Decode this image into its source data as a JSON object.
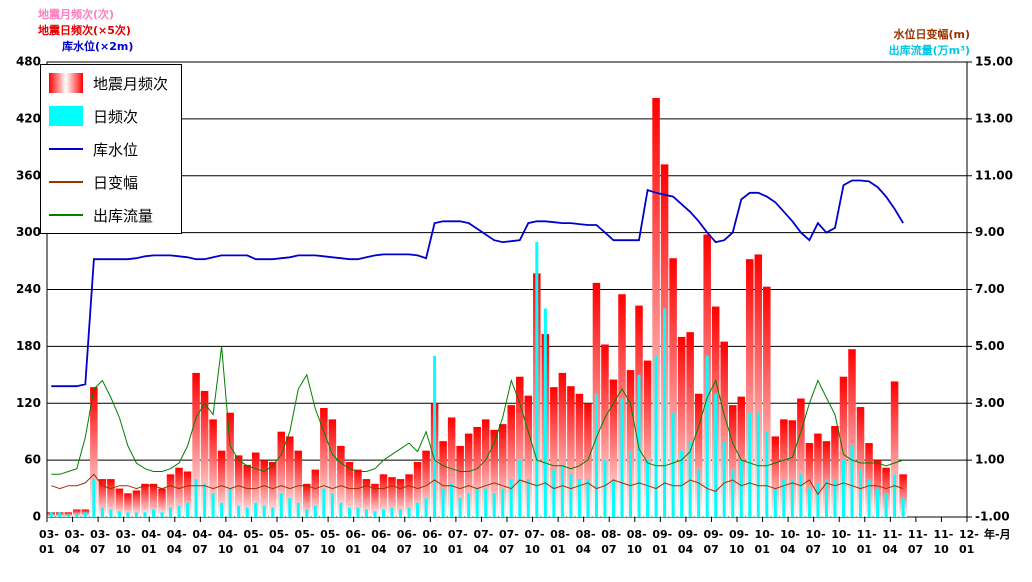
{
  "chart_data": {
    "type": "combo",
    "ylabels": [
      {
        "text": "地震月频次(次)",
        "color": "#ff80c0"
      },
      {
        "text": "地震日频次(×5次)",
        "color": "#e00000"
      },
      {
        "text": "库水位(×2m)",
        "color": "#0000cc"
      }
    ],
    "y2labels": [
      {
        "text": "水位日变幅(m)",
        "color": "#993300"
      },
      {
        "text": "出库流量(万m³)",
        "color": "#00c8e8"
      }
    ],
    "xlabel": "年-月",
    "ylim": [
      0,
      480
    ],
    "yticks": [
      0,
      60,
      120,
      180,
      240,
      300,
      360,
      420,
      480
    ],
    "y2lim": [
      -1,
      15
    ],
    "y2ticks": [
      {
        "value": -1,
        "label": "-1.00"
      },
      {
        "value": 1,
        "label": "1.00"
      },
      {
        "value": 3,
        "label": "3.00"
      },
      {
        "value": 5,
        "label": "5.00"
      },
      {
        "value": 7,
        "label": "7.00"
      },
      {
        "value": 9,
        "label": "9.00"
      },
      {
        "value": 11,
        "label": "11.00"
      },
      {
        "value": 13,
        "label": "13.00"
      },
      {
        "value": 15,
        "label": "15.00"
      }
    ],
    "xticks": [
      "03-01",
      "03-04",
      "03-07",
      "03-10",
      "04-01",
      "04-04",
      "04-07",
      "04-10",
      "05-01",
      "05-04",
      "05-07",
      "05-10",
      "06-01",
      "06-04",
      "06-07",
      "06-10",
      "07-01",
      "07-04",
      "07-07",
      "07-10",
      "08-01",
      "08-04",
      "08-07",
      "08-10",
      "09-01",
      "09-04",
      "09-07",
      "09-10",
      "10-01",
      "10-04",
      "10-07",
      "10-10",
      "11-01",
      "11-04",
      "11-07",
      "11-10",
      "12-01"
    ],
    "grid": true,
    "legend": "upper left",
    "x": [
      "03-01",
      "03-02",
      "03-03",
      "03-04",
      "03-05",
      "03-06",
      "03-07",
      "03-08",
      "03-09",
      "03-10",
      "03-11",
      "03-12",
      "04-01",
      "04-02",
      "04-03",
      "04-04",
      "04-05",
      "04-06",
      "04-07",
      "04-08",
      "04-09",
      "04-10",
      "04-11",
      "04-12",
      "05-01",
      "05-02",
      "05-03",
      "05-04",
      "05-05",
      "05-06",
      "05-07",
      "05-08",
      "05-09",
      "05-10",
      "05-11",
      "05-12",
      "06-01",
      "06-02",
      "06-03",
      "06-04",
      "06-05",
      "06-06",
      "06-07",
      "06-08",
      "06-09",
      "06-10",
      "06-11",
      "06-12",
      "07-01",
      "07-02",
      "07-03",
      "07-04",
      "07-05",
      "07-06",
      "07-07",
      "07-08",
      "07-09",
      "07-10",
      "07-11",
      "07-12",
      "08-01",
      "08-02",
      "08-03",
      "08-04",
      "08-05",
      "08-06",
      "08-07",
      "08-08",
      "08-09",
      "08-10",
      "08-11",
      "08-12",
      "09-01",
      "09-02",
      "09-03",
      "09-04",
      "09-05",
      "09-06",
      "09-07",
      "09-08",
      "09-09",
      "09-10",
      "09-11",
      "09-12",
      "10-01",
      "10-02",
      "10-03",
      "10-04",
      "10-05",
      "10-06",
      "10-07",
      "10-08",
      "10-09",
      "10-10",
      "10-11",
      "10-12",
      "11-01",
      "11-02",
      "11-03",
      "11-04",
      "11-05"
    ],
    "series": [
      {
        "name": "地震月频次",
        "type": "bar",
        "color": "#ff0000",
        "values": [
          5,
          5,
          5,
          8,
          8,
          137,
          40,
          40,
          30,
          25,
          28,
          35,
          35,
          30,
          45,
          52,
          48,
          152,
          133,
          103,
          70,
          110,
          65,
          55,
          68,
          60,
          58,
          90,
          85,
          70,
          35,
          50,
          115,
          103,
          75,
          58,
          50,
          40,
          35,
          45,
          42,
          40,
          45,
          58,
          70,
          120,
          80,
          105,
          75,
          88,
          95,
          103,
          92,
          98,
          118,
          148,
          128,
          257,
          193,
          137,
          152,
          138,
          130,
          120,
          247,
          182,
          145,
          235,
          155,
          223,
          165,
          442,
          372,
          273,
          190,
          195,
          130,
          298,
          222,
          185,
          118,
          127,
          272,
          277,
          243,
          85,
          103,
          102,
          125,
          78,
          88,
          80,
          96,
          148,
          177,
          116,
          78,
          60,
          52,
          143,
          45
        ]
      },
      {
        "name": "日频次",
        "type": "bar",
        "color": "#00ffff",
        "values": [
          5,
          5,
          3,
          3,
          5,
          40,
          10,
          8,
          6,
          5,
          5,
          5,
          8,
          5,
          10,
          12,
          15,
          40,
          35,
          25,
          15,
          30,
          12,
          10,
          15,
          12,
          10,
          25,
          20,
          15,
          8,
          12,
          30,
          25,
          15,
          10,
          10,
          8,
          6,
          8,
          10,
          8,
          10,
          15,
          20,
          170,
          30,
          35,
          20,
          25,
          30,
          30,
          25,
          30,
          40,
          60,
          40,
          290,
          220,
          50,
          55,
          45,
          40,
          40,
          130,
          60,
          40,
          125,
          70,
          150,
          60,
          170,
          220,
          110,
          70,
          80,
          50,
          170,
          130,
          80,
          50,
          60,
          110,
          110,
          90,
          30,
          40,
          40,
          45,
          30,
          35,
          40,
          40,
          60,
          75,
          50,
          40,
          30,
          25,
          45,
          20
        ]
      },
      {
        "name": "库水位",
        "type": "line",
        "color": "#0000cc",
        "values": [
          138,
          138,
          138,
          138,
          140,
          272,
          272,
          272,
          272,
          272,
          273,
          275,
          276,
          276,
          276,
          275,
          274,
          272,
          272,
          274,
          276,
          276,
          276,
          276,
          272,
          272,
          272,
          273,
          274,
          276,
          276,
          276,
          275,
          274,
          273,
          272,
          272,
          274,
          276,
          277,
          277,
          277,
          277,
          276,
          273,
          310,
          312,
          312,
          312,
          310,
          304,
          298,
          292,
          290,
          291,
          292,
          310,
          312,
          312,
          311,
          310,
          310,
          309,
          308,
          308,
          300,
          292,
          292,
          292,
          292,
          345,
          342,
          340,
          338,
          330,
          322,
          312,
          300,
          290,
          292,
          300,
          335,
          342,
          342,
          338,
          332,
          322,
          312,
          300,
          292,
          310,
          300,
          305,
          350,
          355,
          355,
          354,
          348,
          338,
          325,
          310
        ]
      },
      {
        "name": "日变幅",
        "type": "line",
        "axis": "y2",
        "color": "#993300",
        "values": [
          0.1,
          0.0,
          0.1,
          0.1,
          0.2,
          0.5,
          0.1,
          0.0,
          0.1,
          0.1,
          0.0,
          0.1,
          0.1,
          0.0,
          0.1,
          0.0,
          0.1,
          0.1,
          0.1,
          0.0,
          0.1,
          0.0,
          0.1,
          0.0,
          0.0,
          0.1,
          0.0,
          0.1,
          0.0,
          0.1,
          0.1,
          0.0,
          0.1,
          0.0,
          0.1,
          0.0,
          0.0,
          0.1,
          0.0,
          0.0,
          0.1,
          0.0,
          0.1,
          0.0,
          0.1,
          0.3,
          0.1,
          0.1,
          0.0,
          0.1,
          0.0,
          0.1,
          0.2,
          0.1,
          0.0,
          0.3,
          0.2,
          0.1,
          0.2,
          0.0,
          0.1,
          0.0,
          0.1,
          0.2,
          0.0,
          0.1,
          0.3,
          0.2,
          0.1,
          0.2,
          0.1,
          0.0,
          0.2,
          0.1,
          0.1,
          0.3,
          0.2,
          0.0,
          -0.1,
          0.2,
          0.3,
          0.1,
          0.2,
          0.1,
          0.1,
          0.0,
          0.1,
          0.2,
          0.1,
          0.3,
          -0.2,
          0.2,
          0.1,
          0.2,
          0.1,
          0.0,
          0.1,
          0.1,
          0.0,
          0.1,
          0.0
        ]
      },
      {
        "name": "出库流量",
        "type": "line",
        "axis": "y2",
        "color": "#008000",
        "values": [
          0.5,
          0.5,
          0.6,
          0.7,
          1.8,
          3.5,
          3.8,
          3.2,
          2.5,
          1.5,
          0.9,
          0.7,
          0.6,
          0.6,
          0.7,
          0.9,
          1.5,
          2.5,
          3.0,
          2.6,
          5.0,
          1.5,
          1.0,
          0.8,
          0.7,
          0.6,
          0.8,
          1.2,
          2.0,
          3.5,
          4.0,
          2.8,
          2.0,
          1.2,
          0.9,
          0.7,
          0.6,
          0.6,
          0.7,
          1.0,
          1.2,
          1.4,
          1.6,
          1.3,
          2.0,
          1.0,
          0.8,
          0.7,
          0.6,
          0.6,
          0.7,
          1.0,
          1.6,
          2.5,
          3.8,
          3.0,
          2.0,
          1.0,
          0.9,
          0.8,
          0.8,
          0.7,
          0.8,
          1.0,
          1.8,
          2.5,
          3.0,
          3.5,
          3.0,
          1.4,
          0.9,
          0.8,
          0.8,
          0.9,
          1.0,
          1.3,
          2.2,
          3.2,
          3.8,
          2.6,
          1.6,
          1.0,
          0.9,
          0.8,
          0.8,
          0.9,
          1.0,
          1.1,
          2.0,
          3.0,
          3.8,
          3.2,
          2.6,
          1.2,
          1.0,
          0.9,
          0.9,
          0.9,
          0.8,
          0.9,
          1.0
        ]
      }
    ]
  }
}
